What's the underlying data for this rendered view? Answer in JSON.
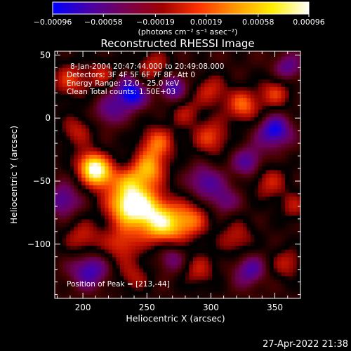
{
  "chart_data": {
    "type": "heatmap",
    "title": "Reconstructed RHESSI Image",
    "xlabel": "Heliocentric X (arcsec)",
    "ylabel": "Heliocentric Y (arcsec)",
    "xlim": [
      178,
      370
    ],
    "ylim": [
      -143,
      53
    ],
    "xticks": [
      200,
      250,
      300,
      350
    ],
    "yticks": [
      50,
      0,
      -50,
      -100
    ],
    "colorbar": {
      "label": "(photons cm⁻² s⁻¹ asec⁻²)",
      "ticks": [
        "−0.00096",
        "−0.00058",
        "−0.00019",
        "0.00019",
        "0.00058",
        "0.00096"
      ],
      "range": [
        -0.00096,
        0.00096
      ],
      "colors": [
        "#0000ff",
        "#4800aa",
        "#7a0050",
        "#a00000",
        "#ff3300",
        "#ff9900",
        "#ffee00",
        "#ffffff"
      ]
    },
    "annotations": [
      "8-Jan-2004 20:47:44.000 to 20:49:08.000",
      "Detectors: 3F 4F 5F 6F 7F 8F, Att 0",
      "Energy Range: 12.0 - 25.0 keV",
      "Clean     Total counts: 1.50E+03"
    ],
    "peak_label": "Position of Peak = [213,-44]",
    "peak": [
      213,
      -44
    ],
    "blobs": [
      {
        "x": 213,
        "y": -44,
        "a": 1.0,
        "r": 9
      },
      {
        "x": 205,
        "y": -36,
        "a": 0.7,
        "r": 8
      },
      {
        "x": 248,
        "y": -72,
        "a": 0.95,
        "r": 13
      },
      {
        "x": 232,
        "y": -68,
        "a": 0.8,
        "r": 11
      },
      {
        "x": 265,
        "y": -86,
        "a": 0.85,
        "r": 12
      },
      {
        "x": 285,
        "y": -80,
        "a": 0.6,
        "r": 10
      },
      {
        "x": 252,
        "y": -40,
        "a": 0.75,
        "r": 9
      },
      {
        "x": 258,
        "y": -20,
        "a": 0.7,
        "r": 10
      },
      {
        "x": 238,
        "y": -50,
        "a": 0.55,
        "r": 9
      },
      {
        "x": 230,
        "y": -100,
        "a": 0.55,
        "r": 10
      },
      {
        "x": 200,
        "y": -95,
        "a": 0.5,
        "r": 10
      },
      {
        "x": 300,
        "y": -15,
        "a": 0.6,
        "r": 10
      },
      {
        "x": 325,
        "y": 10,
        "a": 0.7,
        "r": 9
      },
      {
        "x": 350,
        "y": 20,
        "a": 0.55,
        "r": 9
      },
      {
        "x": 300,
        "y": 22,
        "a": 0.5,
        "r": 9
      },
      {
        "x": 345,
        "y": -50,
        "a": 0.5,
        "r": 10
      },
      {
        "x": 320,
        "y": -95,
        "a": 0.45,
        "r": 10
      },
      {
        "x": 360,
        "y": -115,
        "a": 0.45,
        "r": 9
      },
      {
        "x": 190,
        "y": 30,
        "a": 0.55,
        "r": 10
      },
      {
        "x": 215,
        "y": 35,
        "a": 0.45,
        "r": 8
      },
      {
        "x": 255,
        "y": 40,
        "a": 0.5,
        "r": 10
      },
      {
        "x": 290,
        "y": -120,
        "a": 0.45,
        "r": 10
      },
      {
        "x": 240,
        "y": -125,
        "a": 0.4,
        "r": 9
      },
      {
        "x": 195,
        "y": -10,
        "a": 0.45,
        "r": 9
      },
      {
        "x": 280,
        "y": 5,
        "a": 0.4,
        "r": 8
      },
      {
        "x": 365,
        "y": -70,
        "a": 0.4,
        "r": 8
      },
      {
        "x": 237,
        "y": 20,
        "a": -0.8,
        "r": 9
      },
      {
        "x": 270,
        "y": 25,
        "a": -0.6,
        "r": 8
      },
      {
        "x": 350,
        "y": -10,
        "a": -0.7,
        "r": 9
      },
      {
        "x": 330,
        "y": -35,
        "a": -0.5,
        "r": 9
      },
      {
        "x": 205,
        "y": -120,
        "a": -0.6,
        "r": 10
      },
      {
        "x": 330,
        "y": -120,
        "a": -0.5,
        "r": 9
      },
      {
        "x": 185,
        "y": -65,
        "a": -0.5,
        "r": 9
      },
      {
        "x": 295,
        "y": -50,
        "a": -0.5,
        "r": 9
      },
      {
        "x": 270,
        "y": -110,
        "a": -0.45,
        "r": 9
      },
      {
        "x": 360,
        "y": 40,
        "a": -0.45,
        "r": 8
      },
      {
        "x": 220,
        "y": 5,
        "a": -0.4,
        "r": 8
      },
      {
        "x": 310,
        "y": -65,
        "a": -0.4,
        "r": 8
      }
    ]
  },
  "footer": "27-Apr-2022 21:38"
}
